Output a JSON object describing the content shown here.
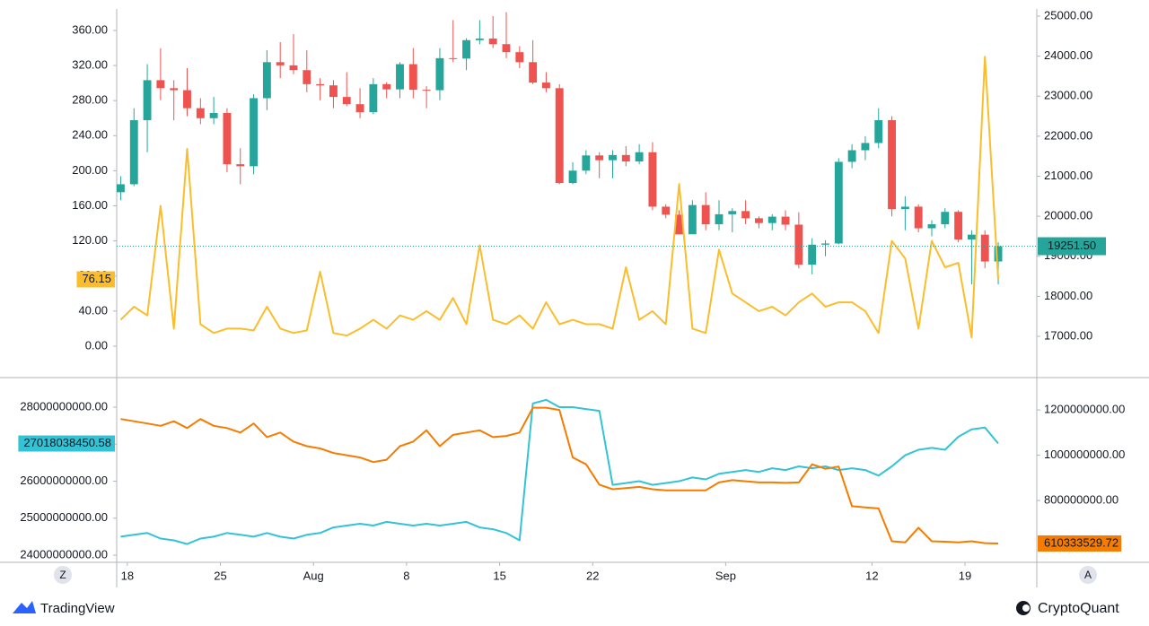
{
  "chart_data": [
    {
      "type": "candlestick",
      "axis": "y2",
      "x": [
        -0.5,
        0.5,
        1.5,
        2.5,
        3.5,
        4.5,
        5.5,
        6.5,
        7.5,
        8.5,
        9.5,
        10.5,
        11.5,
        12.5,
        13.5,
        14.5,
        15.5,
        16.5,
        17.5,
        18.5,
        19.5,
        20.5,
        21.5,
        22.5,
        23.5,
        24.5,
        25.5,
        26.5,
        27.5,
        28.5,
        29.5,
        30.5,
        31.5,
        32.5,
        33.5,
        34.5,
        35.5,
        36.5,
        37.5,
        38.5,
        39.5,
        40.5,
        41.5,
        42.5,
        43.5,
        44.5,
        45.5,
        46.5,
        47.5,
        48.5,
        49.5,
        50.5,
        51.5,
        52.5,
        53.5,
        54.5,
        55.5,
        56.5,
        57.5,
        58.5,
        59.5,
        60.5,
        61.5,
        62.5,
        63.5,
        64.5,
        65.5
      ],
      "open": [
        20600,
        20800,
        22400,
        23400,
        23200,
        23150,
        22700,
        22450,
        22580,
        21300,
        21250,
        22950,
        23850,
        23770,
        23650,
        23300,
        23270,
        22980,
        22800,
        22600,
        23300,
        23170,
        23800,
        23160,
        23150,
        23950,
        23940,
        24400,
        24440,
        24300,
        24100,
        23850,
        23340,
        23200,
        20830,
        21140,
        21520,
        21400,
        21530,
        21370,
        21600,
        20240,
        20040,
        19550,
        20280,
        19800,
        20050,
        20130,
        19950,
        19830,
        19990,
        19790,
        18790,
        19290,
        19320,
        21360,
        21650,
        21830,
        22400,
        20180,
        20240,
        19700,
        19800,
        20110,
        19420,
        19540,
        18870
      ],
      "high": [
        21000,
        22700,
        23800,
        24200,
        23400,
        23700,
        22950,
        22980,
        22700,
        21700,
        23050,
        24150,
        24350,
        24550,
        24150,
        23450,
        23400,
        23600,
        23200,
        23450,
        23350,
        23850,
        24200,
        23250,
        24200,
        24900,
        24450,
        24900,
        25000,
        25100,
        24250,
        24400,
        23600,
        23300,
        21350,
        21650,
        21600,
        21650,
        21750,
        21800,
        21850,
        20300,
        20150,
        20400,
        20600,
        20400,
        20200,
        20400,
        20000,
        20050,
        20150,
        20100,
        19450,
        19400,
        21450,
        21800,
        22000,
        22700,
        22500,
        20500,
        20300,
        19900,
        20200,
        20150,
        19650,
        19650,
        19350
      ],
      "low": [
        20400,
        20750,
        21600,
        22900,
        22400,
        22500,
        22300,
        22300,
        21100,
        20800,
        21050,
        22650,
        23450,
        23550,
        23100,
        22900,
        22700,
        22750,
        22450,
        22550,
        22950,
        22950,
        22950,
        22700,
        22900,
        23850,
        23650,
        24300,
        24200,
        23950,
        23700,
        23300,
        23100,
        20800,
        20800,
        21050,
        20950,
        20950,
        21250,
        21300,
        20150,
        19950,
        19550,
        19550,
        19650,
        19650,
        19600,
        19800,
        19700,
        19650,
        19650,
        18700,
        18550,
        19000,
        19300,
        21200,
        21400,
        21700,
        20000,
        19650,
        19600,
        19500,
        19700,
        19350,
        18300,
        18700,
        18300
      ],
      "close": [
        20800,
        22400,
        23400,
        23200,
        23150,
        22700,
        22450,
        22580,
        21300,
        21250,
        22950,
        23850,
        23770,
        23650,
        23300,
        23270,
        22980,
        22800,
        22600,
        23300,
        23170,
        23800,
        23160,
        23150,
        23950,
        23940,
        24400,
        24440,
        24300,
        24100,
        23850,
        23340,
        23200,
        20830,
        21140,
        21520,
        21400,
        21530,
        21370,
        21600,
        20240,
        20040,
        19550,
        20280,
        19800,
        20050,
        20130,
        19950,
        19830,
        19990,
        19790,
        18790,
        19290,
        19320,
        21360,
        21650,
        21830,
        22400,
        20180,
        20240,
        19700,
        19800,
        20110,
        19420,
        19540,
        18870,
        19251.5
      ],
      "up_color": "#26a69a",
      "down_color": "#ef5350",
      "price_label": "19251.50",
      "price_line_color": "#26a69a",
      "series": [
        {
          "color": "#fbbd2b",
          "axis": "y",
          "values": [
            30,
            45,
            35,
            160,
            20,
            225,
            25,
            15,
            20,
            20,
            18,
            45,
            20,
            15,
            18,
            85,
            15,
            12,
            20,
            30,
            20,
            35,
            30,
            40,
            30,
            55,
            25,
            115,
            30,
            25,
            35,
            20,
            50,
            25,
            30,
            25,
            25,
            20,
            90,
            30,
            40,
            25,
            185,
            20,
            15,
            110,
            60,
            50,
            40,
            45,
            35,
            50,
            60,
            45,
            50,
            50,
            40,
            15,
            120,
            100,
            20,
            120,
            90,
            95,
            10,
            330,
            76.15
          ]
        }
      ],
      "xlim": [
        -0.8,
        68.4
      ],
      "ylim": [
        -34.8,
        384.5
      ],
      "yticks": [
        {
          "value": 0,
          "label": "0.00"
        },
        {
          "value": 40,
          "label": "40.00"
        },
        {
          "value": 80,
          "label": "80.00"
        },
        {
          "value": 120,
          "label": "120.00"
        },
        {
          "value": 160,
          "label": "160.00"
        },
        {
          "value": 200,
          "label": "200.00"
        },
        {
          "value": 240,
          "label": "240.00"
        },
        {
          "value": 280,
          "label": "280.00"
        },
        {
          "value": 320,
          "label": "320.00"
        },
        {
          "value": 360,
          "label": "360.00"
        }
      ],
      "y2lim": [
        15992,
        25179
      ],
      "y2ticks": [
        {
          "value": 17000,
          "label": "17000.00"
        },
        {
          "value": 18000,
          "label": "18000.00"
        },
        {
          "value": 19000,
          "label": "19000.00"
        },
        {
          "value": 20000,
          "label": "20000.00"
        },
        {
          "value": 21000,
          "label": "21000.00"
        },
        {
          "value": 22000,
          "label": "22000.00"
        },
        {
          "value": 23000,
          "label": "23000.00"
        },
        {
          "value": 24000,
          "label": "24000.00"
        },
        {
          "value": 25000,
          "label": "25000.00"
        }
      ],
      "grid": false
    },
    {
      "type": "line",
      "x": [
        -0.5,
        0.5,
        1.5,
        2.5,
        3.5,
        4.5,
        5.5,
        6.5,
        7.5,
        8.5,
        9.5,
        10.5,
        11.5,
        12.5,
        13.5,
        14.5,
        15.5,
        16.5,
        17.5,
        18.5,
        19.5,
        20.5,
        21.5,
        22.5,
        23.5,
        24.5,
        25.5,
        26.5,
        27.5,
        28.5,
        29.5,
        30.5,
        31.5,
        32.5,
        33.5,
        34.5,
        35.5,
        36.5,
        37.5,
        38.5,
        39.5,
        40.5,
        41.5,
        42.5,
        43.5,
        44.5,
        45.5,
        46.5,
        47.5,
        48.5,
        49.5,
        50.5,
        51.5,
        52.5,
        53.5,
        54.5,
        55.5,
        56.5,
        57.5,
        58.5,
        59.5,
        60.5,
        61.5,
        62.5,
        63.5,
        64.5,
        65.5
      ],
      "series": [
        {
          "color": "#33c3d4",
          "axis": "y",
          "values": [
            24500000000,
            24550000000,
            24600000000,
            24450000000,
            24400000000,
            24300000000,
            24450000000,
            24500000000,
            24600000000,
            24550000000,
            24500000000,
            24600000000,
            24500000000,
            24450000000,
            24550000000,
            24600000000,
            24750000000,
            24800000000,
            24850000000,
            24800000000,
            24900000000,
            24850000000,
            24800000000,
            24850000000,
            24800000000,
            24850000000,
            24900000000,
            24750000000,
            24700000000,
            24600000000,
            24400000000,
            28100000000,
            28200000000,
            28000000000,
            28000000000,
            27950000000,
            27900000000,
            25900000000,
            25950000000,
            26000000000,
            25900000000,
            25950000000,
            26000000000,
            26100000000,
            26050000000,
            26200000000,
            26250000000,
            26300000000,
            26250000000,
            26350000000,
            26300000000,
            26400000000,
            26350000000,
            26400000000,
            26300000000,
            26350000000,
            26300000000,
            26150000000,
            26400000000,
            26700000000,
            26850000000,
            26900000000,
            26850000000,
            27200000000,
            27400000000,
            27450000000,
            27018038450.58
          ]
        },
        {
          "color": "#f57c00",
          "axis": "y2",
          "values": [
            1160000000,
            1150000000,
            1140000000,
            1130000000,
            1150000000,
            1120000000,
            1160000000,
            1130000000,
            1120000000,
            1100000000,
            1140000000,
            1080000000,
            1100000000,
            1060000000,
            1040000000,
            1030000000,
            1010000000,
            1000000000,
            990000000,
            970000000,
            980000000,
            1040000000,
            1060000000,
            1110000000,
            1040000000,
            1090000000,
            1100000000,
            1110000000,
            1080000000,
            1085000000,
            1100000000,
            1210000000,
            1210000000,
            1200000000,
            990000000,
            960000000,
            870000000,
            850000000,
            855000000,
            860000000,
            850000000,
            845000000,
            845000000,
            845000000,
            845000000,
            880000000,
            890000000,
            885000000,
            880000000,
            880000000,
            878000000,
            880000000,
            960000000,
            940000000,
            950000000,
            775000000,
            770000000,
            765000000,
            620000000,
            615000000,
            680000000,
            620000000,
            618000000,
            615000000,
            620000000,
            612000000,
            610333529.72
          ]
        }
      ],
      "xlim": [
        -0.8,
        68.4
      ],
      "ylim": [
        23855000000,
        28776000000
      ],
      "yticks": [
        {
          "value": 24000000000,
          "label": "24000000000.00"
        },
        {
          "value": 25000000000,
          "label": "25000000000.00"
        },
        {
          "value": 26000000000,
          "label": "26000000000.00"
        },
        {
          "value": 27000000000,
          "label": "27000000000.00"
        },
        {
          "value": 28000000000,
          "label": "28000000000.00"
        }
      ],
      "y2lim": [
        535000000,
        1339000000
      ],
      "y2ticks": [
        {
          "value": 800000000,
          "label": "800000000.00"
        },
        {
          "value": 1000000000,
          "label": "1000000000.00"
        },
        {
          "value": 1200000000,
          "label": "1200000000.00"
        }
      ],
      "xticks": [
        {
          "value": 0,
          "label": "18"
        },
        {
          "value": 7,
          "label": "25"
        },
        {
          "value": 14,
          "label": "Aug"
        },
        {
          "value": 21,
          "label": "8"
        },
        {
          "value": 28,
          "label": "15"
        },
        {
          "value": 35,
          "label": "22"
        },
        {
          "value": 45,
          "label": "Sep"
        },
        {
          "value": 56,
          "label": "12"
        },
        {
          "value": 63,
          "label": "19"
        }
      ],
      "grid": false
    }
  ],
  "controls": [
    "Z",
    "A"
  ],
  "footer": {
    "left": "TradingView",
    "right": "CryptoQuant"
  }
}
